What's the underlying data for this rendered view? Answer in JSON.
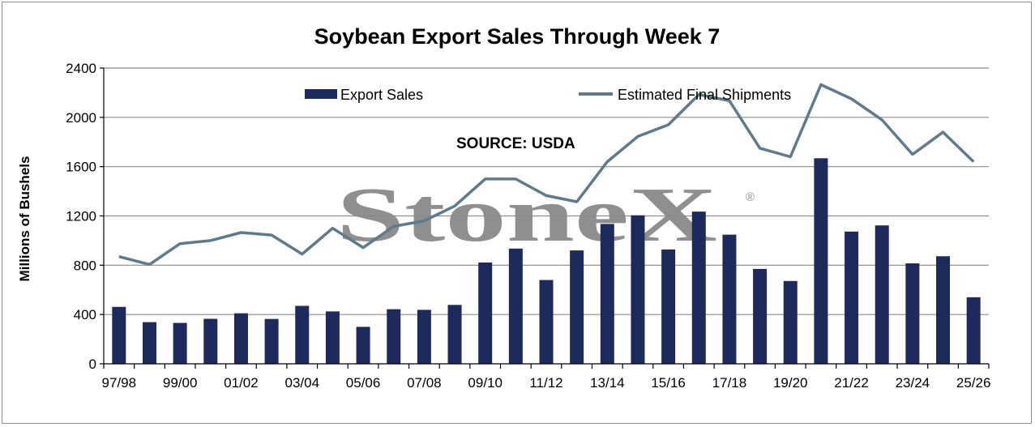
{
  "chart_data": {
    "type": "bar",
    "title": "Soybean Export Sales Through Week 7",
    "ylabel": "Millions of Bushels",
    "xlabel": "",
    "ylim": [
      0,
      2400
    ],
    "yticks": [
      "0",
      "400",
      "800",
      "1200",
      "1600",
      "2000",
      "2400"
    ],
    "grid": true,
    "legend_position": "top",
    "categories": [
      "97/98",
      "98/99",
      "99/00",
      "00/01",
      "01/02",
      "02/03",
      "03/04",
      "04/05",
      "05/06",
      "06/07",
      "07/08",
      "08/09",
      "09/10",
      "10/11",
      "11/12",
      "12/13",
      "13/14",
      "14/15",
      "15/16",
      "16/17",
      "17/18",
      "18/19",
      "19/20",
      "20/21",
      "21/22",
      "22/23",
      "23/24",
      "24/25",
      "25/26"
    ],
    "tick_labels": [
      "97/98",
      "99/00",
      "01/02",
      "03/04",
      "05/06",
      "07/08",
      "09/10",
      "11/12",
      "13/14",
      "15/16",
      "17/18",
      "19/20",
      "21/22",
      "23/24",
      "25/26"
    ],
    "series": [
      {
        "name": "Export Sales",
        "kind": "bar",
        "color": "#1f2a5c",
        "values": [
          462,
          338,
          332,
          365,
          410,
          364,
          470,
          425,
          300,
          443,
          438,
          478,
          822,
          935,
          680,
          920,
          1135,
          1205,
          928,
          1235,
          1048,
          770,
          672,
          1668,
          1073,
          1123,
          815,
          873,
          540
        ]
      },
      {
        "name": "Estimated Final Shipments",
        "kind": "line",
        "color": "#5f7a8a",
        "values": [
          870,
          806,
          975,
          1000,
          1065,
          1045,
          890,
          1100,
          943,
          1115,
          1160,
          1280,
          1500,
          1500,
          1365,
          1315,
          1640,
          1845,
          1940,
          2185,
          2135,
          1750,
          1680,
          2265,
          2150,
          1980,
          1700,
          1880,
          1640
        ]
      }
    ],
    "annotation": "SOURCE: USDA"
  },
  "watermark": {
    "brand": "StoneX",
    "mark": "®",
    "color": "#8a8a8a"
  },
  "colors": {
    "gridline": "#8c8c8c",
    "axis": "#000000",
    "frame": "#8c8c8c"
  }
}
